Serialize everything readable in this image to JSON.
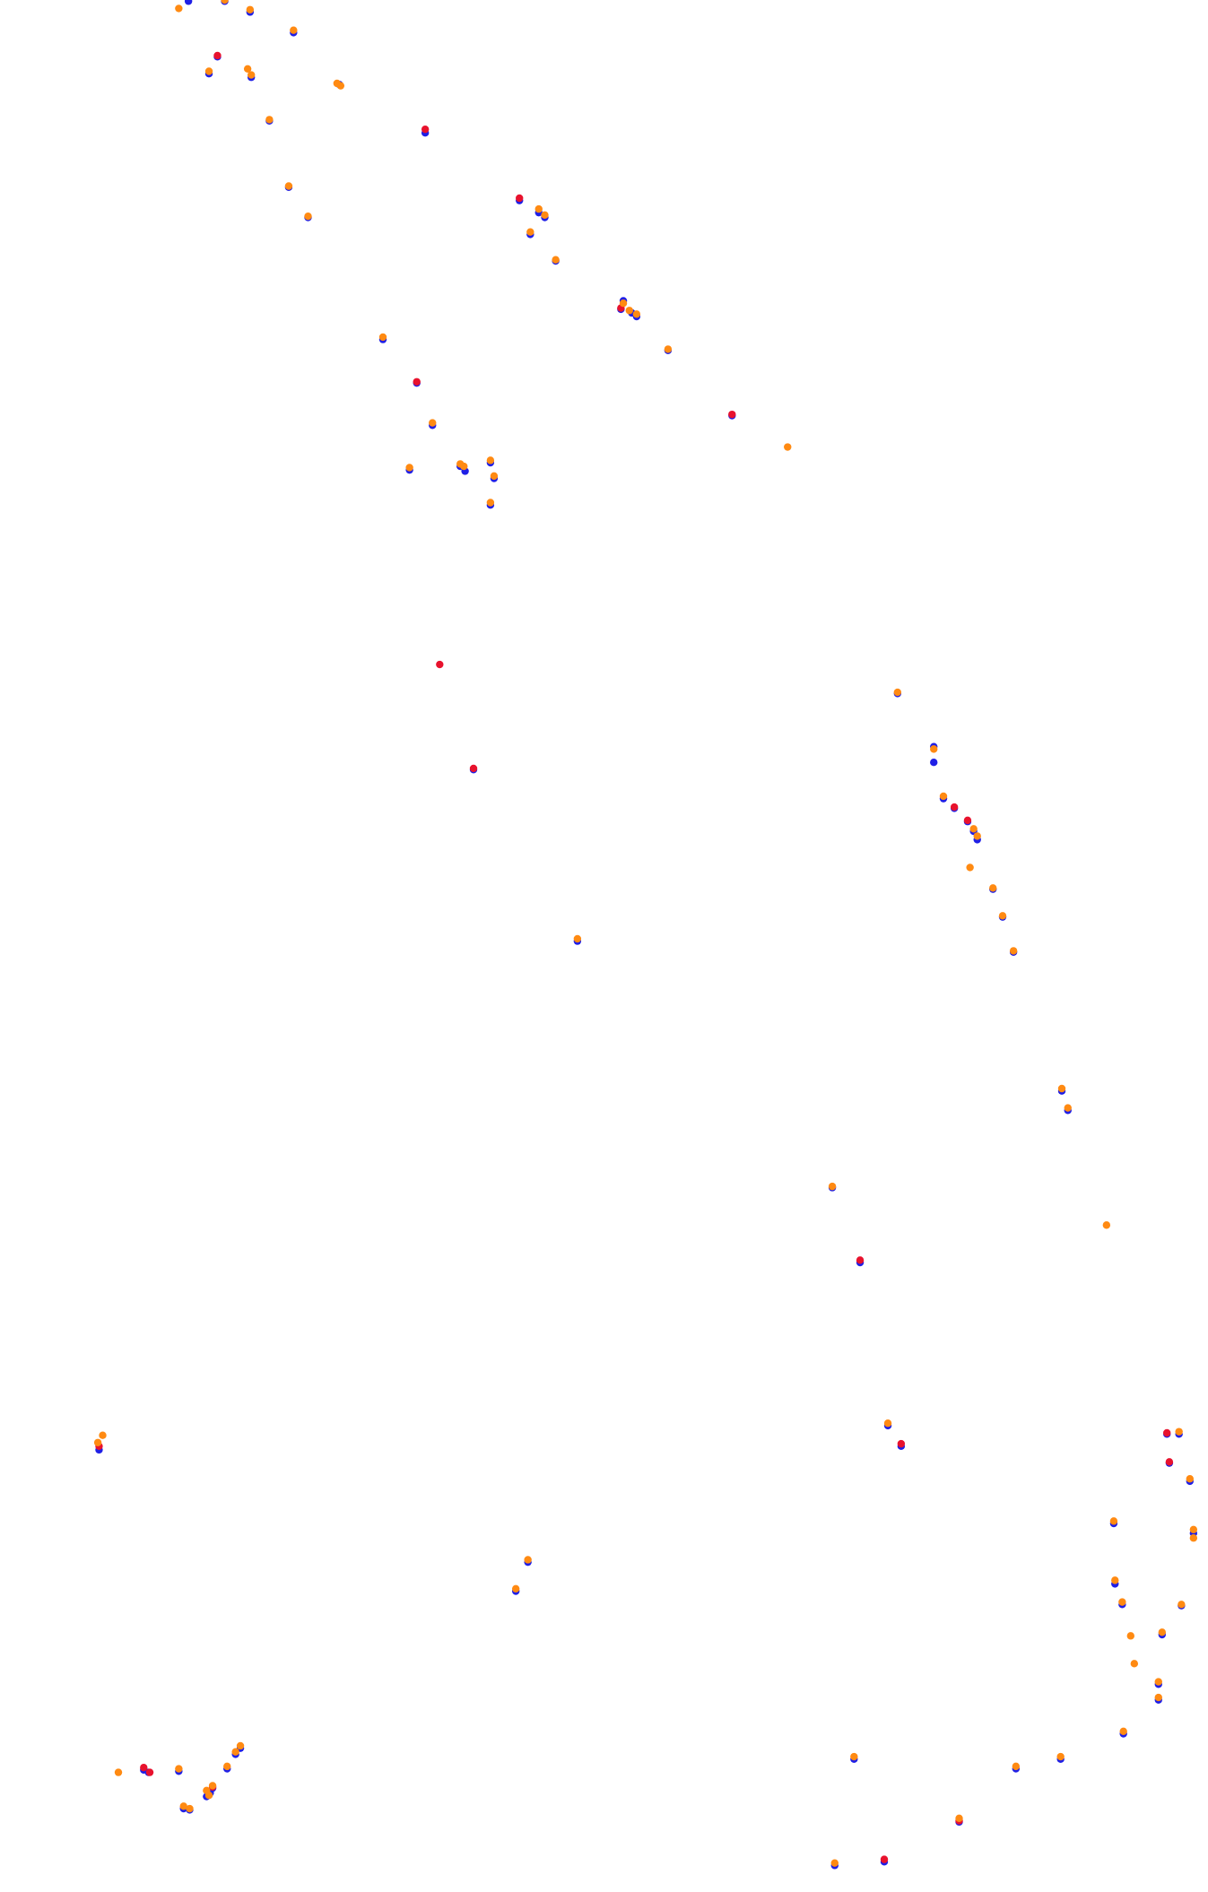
{
  "colors": {
    "blue": "#1f1fe6",
    "red": "#e8122d",
    "orange": "#ff8a12"
  },
  "chart_data": {
    "type": "scatter",
    "title": "",
    "xlabel": "",
    "ylabel": "",
    "grid": false,
    "legend": "none",
    "xlim": [
      0,
      1000
    ],
    "ylim": [
      0,
      1566
    ],
    "series": [
      {
        "color": "#1f1fe6",
        "points": [
          [
            156,
            1
          ],
          [
            186,
            1
          ],
          [
            243,
            27
          ],
          [
            207,
            10
          ],
          [
            180,
            47
          ],
          [
            173,
            61
          ],
          [
            208,
            64
          ],
          [
            223,
            100
          ],
          [
            281,
            70
          ],
          [
            352,
            110
          ],
          [
            239,
            155
          ],
          [
            255,
            180
          ],
          [
            430,
            166
          ],
          [
            446,
            176
          ],
          [
            451,
            180
          ],
          [
            439,
            194
          ],
          [
            460,
            216
          ],
          [
            317,
            281
          ],
          [
            516,
            249
          ],
          [
            514,
            256
          ],
          [
            523,
            259
          ],
          [
            527,
            262
          ],
          [
            553,
            290
          ],
          [
            345,
            317
          ],
          [
            358,
            352
          ],
          [
            606,
            344
          ],
          [
            339,
            389
          ],
          [
            381,
            386
          ],
          [
            385,
            390
          ],
          [
            406,
            383
          ],
          [
            409,
            396
          ],
          [
            406,
            418
          ],
          [
            392,
            637
          ],
          [
            743,
            574
          ],
          [
            773,
            618
          ],
          [
            773,
            631
          ],
          [
            781,
            661
          ],
          [
            790,
            669
          ],
          [
            801,
            680
          ],
          [
            806,
            688
          ],
          [
            809,
            695
          ],
          [
            822,
            736
          ],
          [
            830,
            759
          ],
          [
            839,
            788
          ],
          [
            478,
            779
          ],
          [
            879,
            903
          ],
          [
            884,
            919
          ],
          [
            689,
            983
          ],
          [
            712,
            1045
          ],
          [
            82,
            1200
          ],
          [
            746,
            1197
          ],
          [
            735,
            1180
          ],
          [
            966,
            1187
          ],
          [
            976,
            1187
          ],
          [
            968,
            1211
          ],
          [
            985,
            1226
          ],
          [
            922,
            1261
          ],
          [
            988,
            1269
          ],
          [
            437,
            1293
          ],
          [
            427,
            1317
          ],
          [
            923,
            1311
          ],
          [
            929,
            1328
          ],
          [
            978,
            1329
          ],
          [
            962,
            1353
          ],
          [
            959,
            1394
          ],
          [
            959,
            1407
          ],
          [
            930,
            1435
          ],
          [
            199,
            1447
          ],
          [
            195,
            1452
          ],
          [
            188,
            1464
          ],
          [
            148,
            1466
          ],
          [
            119,
            1465
          ],
          [
            123,
            1467
          ],
          [
            176,
            1480
          ],
          [
            174,
            1484
          ],
          [
            171,
            1487
          ],
          [
            157,
            1498
          ],
          [
            152,
            1497
          ],
          [
            707,
            1456
          ],
          [
            878,
            1456
          ],
          [
            841,
            1464
          ],
          [
            794,
            1508
          ],
          [
            691,
            1544
          ],
          [
            732,
            1541
          ]
        ]
      },
      {
        "color": "#e8122d",
        "points": [
          [
            180,
            46
          ],
          [
            352,
            107
          ],
          [
            430,
            164
          ],
          [
            514,
            255
          ],
          [
            606,
            343
          ],
          [
            345,
            316
          ],
          [
            364,
            550
          ],
          [
            392,
            636
          ],
          [
            790,
            668
          ],
          [
            801,
            679
          ],
          [
            712,
            1043
          ],
          [
            82,
            1197
          ],
          [
            746,
            1195
          ],
          [
            966,
            1186
          ],
          [
            968,
            1210
          ],
          [
            119,
            1463
          ],
          [
            124,
            1467
          ],
          [
            176,
            1479
          ],
          [
            794,
            1507
          ],
          [
            732,
            1539
          ]
        ]
      },
      {
        "color": "#ff8a12",
        "points": [
          [
            148,
            7
          ],
          [
            186,
            0
          ],
          [
            243,
            25
          ],
          [
            207,
            8
          ],
          [
            173,
            59
          ],
          [
            205,
            57
          ],
          [
            208,
            62
          ],
          [
            223,
            99
          ],
          [
            279,
            69
          ],
          [
            282,
            71
          ],
          [
            239,
            154
          ],
          [
            255,
            179
          ],
          [
            446,
            173
          ],
          [
            451,
            178
          ],
          [
            439,
            192
          ],
          [
            460,
            215
          ],
          [
            317,
            279
          ],
          [
            516,
            251
          ],
          [
            521,
            257
          ],
          [
            527,
            260
          ],
          [
            553,
            289
          ],
          [
            358,
            350
          ],
          [
            652,
            370
          ],
          [
            339,
            387
          ],
          [
            381,
            384
          ],
          [
            384,
            386
          ],
          [
            406,
            381
          ],
          [
            409,
            394
          ],
          [
            406,
            416
          ],
          [
            743,
            573
          ],
          [
            773,
            620
          ],
          [
            781,
            659
          ],
          [
            806,
            686
          ],
          [
            809,
            692
          ],
          [
            803,
            718
          ],
          [
            822,
            735
          ],
          [
            830,
            758
          ],
          [
            839,
            787
          ],
          [
            478,
            777
          ],
          [
            879,
            901
          ],
          [
            884,
            917
          ],
          [
            689,
            982
          ],
          [
            916,
            1014
          ],
          [
            81,
            1194
          ],
          [
            85,
            1188
          ],
          [
            735,
            1178
          ],
          [
            976,
            1185
          ],
          [
            985,
            1224
          ],
          [
            922,
            1259
          ],
          [
            988,
            1266
          ],
          [
            988,
            1273
          ],
          [
            437,
            1291
          ],
          [
            427,
            1315
          ],
          [
            923,
            1308
          ],
          [
            929,
            1326
          ],
          [
            978,
            1328
          ],
          [
            936,
            1354
          ],
          [
            962,
            1351
          ],
          [
            939,
            1377
          ],
          [
            959,
            1392
          ],
          [
            959,
            1405
          ],
          [
            930,
            1433
          ],
          [
            199,
            1445
          ],
          [
            195,
            1450
          ],
          [
            188,
            1462
          ],
          [
            148,
            1464
          ],
          [
            98,
            1467
          ],
          [
            176,
            1478
          ],
          [
            171,
            1482
          ],
          [
            173,
            1486
          ],
          [
            152,
            1495
          ],
          [
            157,
            1497
          ],
          [
            707,
            1454
          ],
          [
            878,
            1454
          ],
          [
            841,
            1462
          ],
          [
            794,
            1505
          ],
          [
            691,
            1542
          ]
        ]
      }
    ]
  }
}
